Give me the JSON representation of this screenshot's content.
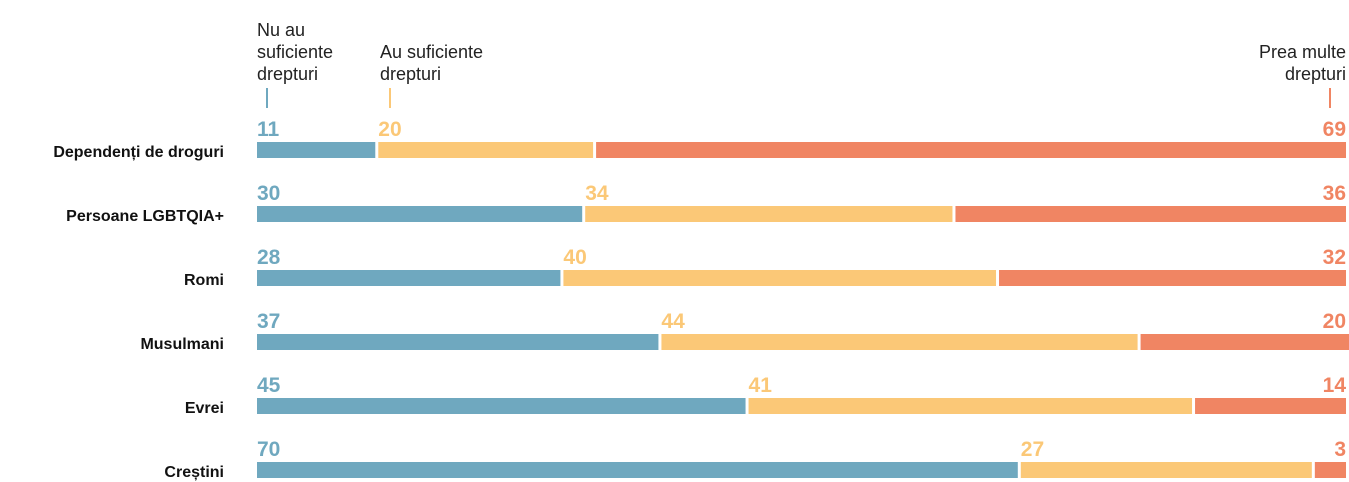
{
  "chart_data": {
    "type": "bar",
    "stacked": true,
    "orientation": "horizontal",
    "legend": [
      {
        "key": "insufficient",
        "lines": [
          "Nu au",
          "suficiente",
          "drepturi"
        ],
        "color": "#6fa8bf"
      },
      {
        "key": "sufficient",
        "lines": [
          "Au suficiente",
          "drepturi"
        ],
        "color": "#fbc877"
      },
      {
        "key": "too_many",
        "lines": [
          "Prea multe",
          "drepturi"
        ],
        "color": "#f08563"
      }
    ],
    "categories": [
      "Dependenți de droguri",
      "Persoane LGBTQIA+",
      "Romi",
      "Musulmani",
      "Evrei",
      "Creștini"
    ],
    "series": [
      {
        "name": "Nu au suficiente drepturi",
        "values": [
          11,
          30,
          28,
          37,
          45,
          70
        ]
      },
      {
        "name": "Au suficiente drepturi",
        "values": [
          20,
          34,
          40,
          44,
          41,
          27
        ]
      },
      {
        "name": "Prea multe drepturi",
        "values": [
          69,
          36,
          32,
          20,
          14,
          3
        ]
      }
    ],
    "xlim": [
      0,
      100
    ],
    "grid": false
  }
}
